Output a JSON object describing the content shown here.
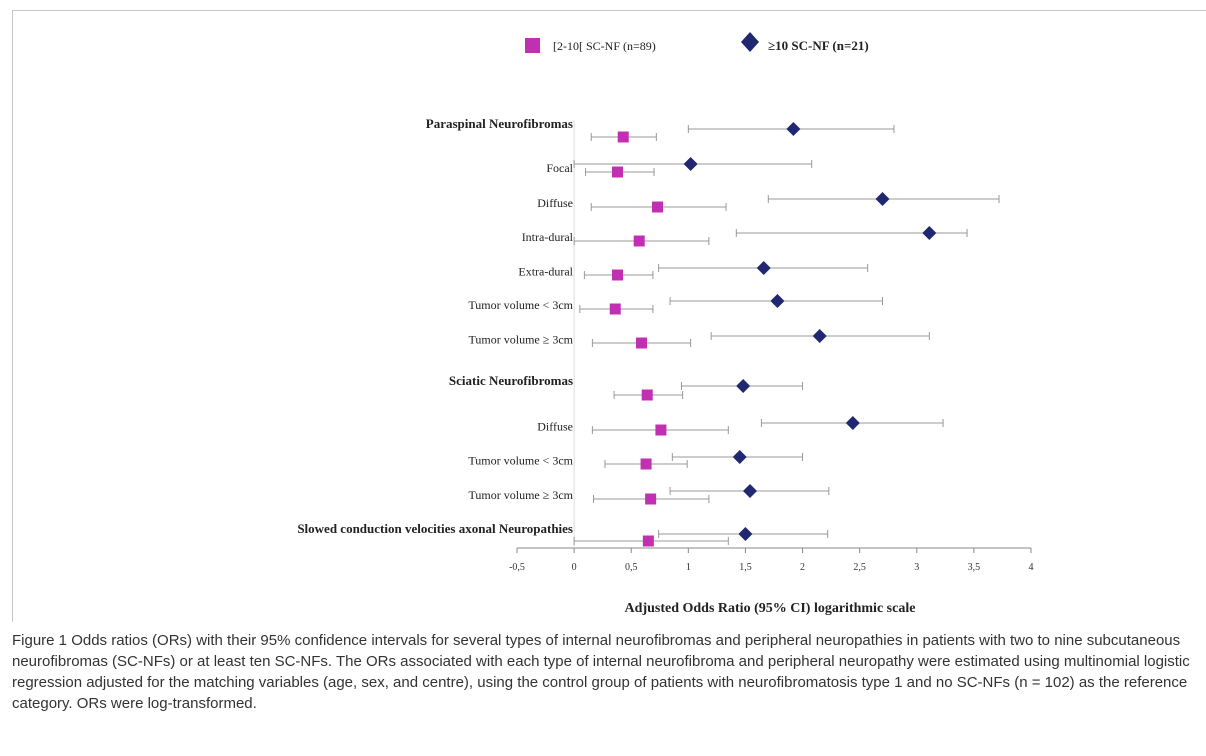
{
  "chart_data": {
    "type": "scatter",
    "subtype": "forest-plot",
    "xlabel": "Adjusted Odds Ratio (95% CI) logarithmic scale",
    "xlim": [
      -0.5,
      4
    ],
    "xticks": [
      "-0,5",
      "0",
      "0,5",
      "1",
      "1,5",
      "2",
      "2,5",
      "3",
      "3,5",
      "4"
    ],
    "xtick_values": [
      -0.5,
      0,
      0.5,
      1,
      1.5,
      2,
      2.5,
      3,
      3.5,
      4
    ],
    "grid": false,
    "legend_position": "top-center",
    "colors": {
      "series1": "#c030b0",
      "series2": "#1f2870",
      "whisker": "#999999"
    },
    "series": [
      {
        "name": "[2-10[ SC-NF (n=89)",
        "marker": "square"
      },
      {
        "name": "≥10 SC-NF (n=21)",
        "marker": "diamond"
      }
    ],
    "rows": [
      {
        "label": "Paraspinal Neurofibromas",
        "header": true,
        "s1": {
          "or": 0.43,
          "lo": 0.15,
          "hi": 0.72
        },
        "s2": {
          "or": 1.92,
          "lo": 1.0,
          "hi": 2.8
        }
      },
      {
        "label": "Focal",
        "header": false,
        "s1": {
          "or": 0.38,
          "lo": 0.1,
          "hi": 0.7
        },
        "s2": {
          "or": 1.02,
          "lo": 0.0,
          "hi": 2.08
        }
      },
      {
        "label": "Diffuse",
        "header": false,
        "s1": {
          "or": 0.73,
          "lo": 0.15,
          "hi": 1.33
        },
        "s2": {
          "or": 2.7,
          "lo": 1.7,
          "hi": 3.72
        }
      },
      {
        "label": "Intra-dural",
        "header": false,
        "s1": {
          "or": 0.57,
          "lo": 0.0,
          "hi": 1.18
        },
        "s2": {
          "or": 3.11,
          "lo": 1.42,
          "hi": 3.44
        }
      },
      {
        "label": "Extra-dural",
        "header": false,
        "s1": {
          "or": 0.38,
          "lo": 0.09,
          "hi": 0.69
        },
        "s2": {
          "or": 1.66,
          "lo": 0.74,
          "hi": 2.57
        }
      },
      {
        "label": "Tumor volume < 3cm",
        "header": false,
        "s1": {
          "or": 0.36,
          "lo": 0.05,
          "hi": 0.69
        },
        "s2": {
          "or": 1.78,
          "lo": 0.84,
          "hi": 2.7
        }
      },
      {
        "label": "Tumor volume ≥ 3cm",
        "header": false,
        "s1": {
          "or": 0.59,
          "lo": 0.16,
          "hi": 1.02
        },
        "s2": {
          "or": 2.15,
          "lo": 1.2,
          "hi": 3.11
        }
      },
      {
        "label": "Sciatic Neurofibromas",
        "header": true,
        "s1": {
          "or": 0.64,
          "lo": 0.35,
          "hi": 0.95
        },
        "s2": {
          "or": 1.48,
          "lo": 0.94,
          "hi": 2.0
        }
      },
      {
        "label": "Diffuse",
        "header": false,
        "s1": {
          "or": 0.76,
          "lo": 0.16,
          "hi": 1.35
        },
        "s2": {
          "or": 2.44,
          "lo": 1.64,
          "hi": 3.23
        }
      },
      {
        "label": "Tumor volume < 3cm",
        "header": false,
        "s1": {
          "or": 0.63,
          "lo": 0.27,
          "hi": 0.99
        },
        "s2": {
          "or": 1.45,
          "lo": 0.86,
          "hi": 2.0
        }
      },
      {
        "label": "Tumor volume ≥ 3cm",
        "header": false,
        "s1": {
          "or": 0.67,
          "lo": 0.17,
          "hi": 1.18
        },
        "s2": {
          "or": 1.54,
          "lo": 0.84,
          "hi": 2.23
        }
      },
      {
        "label": "Slowed conduction velocities axonal Neuropathies",
        "header": true,
        "s1": {
          "or": 0.65,
          "lo": 0.0,
          "hi": 1.35
        },
        "s2": {
          "or": 1.5,
          "lo": 0.74,
          "hi": 2.22
        }
      }
    ]
  },
  "caption": "Figure 1 Odds ratios (ORs) with their 95% confidence intervals for several types of internal neurofibromas and peripheral neuropathies in patients with two to nine subcutaneous neurofibromas (SC-NFs) or at least ten SC-NFs. The ORs associated with each type of internal neurofibroma and peripheral neuropathy were estimated using multinomial logistic regression adjusted for the matching variables (age, sex, and centre), using the control group of patients with neurofibromatosis type 1 and no SC-NFs (n = 102) as the reference category. ORs were log-transformed."
}
